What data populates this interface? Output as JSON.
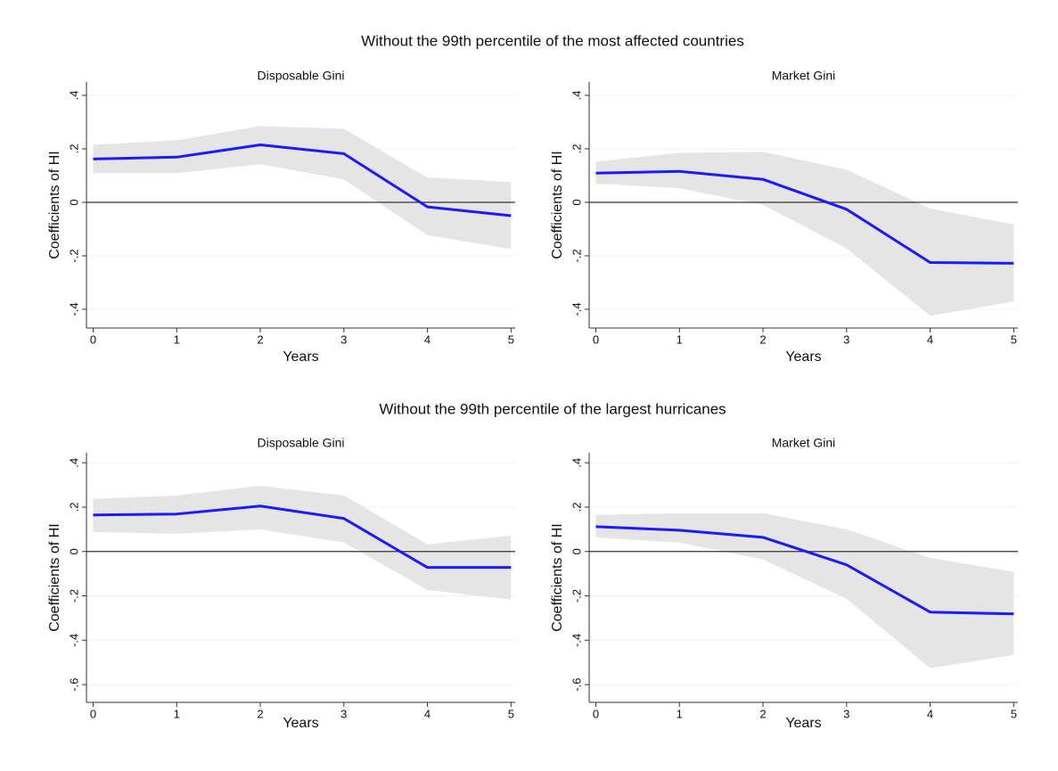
{
  "section_titles": [
    "Without the 99th percentile of the most affected countries",
    "Without the 99th percentile of the largest hurricanes"
  ],
  "chart_data": [
    {
      "type": "line",
      "title": "Disposable Gini",
      "xlabel": "Years",
      "ylabel": "Coefficients of HI",
      "x": [
        0,
        1,
        2,
        3,
        4,
        5
      ],
      "values": [
        0.162,
        0.169,
        0.215,
        0.182,
        -0.017,
        -0.05
      ],
      "upper": [
        0.215,
        0.232,
        0.285,
        0.275,
        0.093,
        0.076
      ],
      "lower": [
        0.109,
        0.109,
        0.142,
        0.086,
        -0.123,
        -0.175
      ],
      "color": "#1a1aff",
      "band_color": "#e5e5e5",
      "xlim": [
        -0.08,
        5.05
      ],
      "ylim": [
        -0.47,
        0.45
      ],
      "xticks": [
        0,
        1,
        2,
        3,
        4,
        5
      ],
      "yticks": [
        {
          "value": 0.4,
          "label": ".4"
        },
        {
          "value": 0.2,
          "label": ".2"
        },
        0,
        {
          "value": -0.2,
          "label": "-.2"
        },
        {
          "value": -0.4,
          "label": "-.4"
        }
      ],
      "grid": true,
      "reference_line": 0
    },
    {
      "type": "line",
      "title": "Market Gini",
      "xlabel": "Years",
      "ylabel": "Coefficients of HI",
      "x": [
        0,
        1,
        2,
        3,
        4,
        5
      ],
      "values": [
        0.109,
        0.116,
        0.086,
        -0.026,
        -0.225,
        -0.228
      ],
      "upper": [
        0.152,
        0.185,
        0.189,
        0.122,
        -0.023,
        -0.083
      ],
      "lower": [
        0.07,
        0.053,
        -0.01,
        -0.172,
        -0.424,
        -0.371
      ],
      "color": "#1a1aff",
      "band_color": "#e5e5e5",
      "xlim": [
        -0.08,
        5.05
      ],
      "ylim": [
        -0.47,
        0.45
      ],
      "xticks": [
        0,
        1,
        2,
        3,
        4,
        5
      ],
      "yticks": [
        {
          "value": 0.4,
          "label": ".4"
        },
        {
          "value": 0.2,
          "label": ".2"
        },
        0,
        {
          "value": -0.2,
          "label": "-.2"
        },
        {
          "value": -0.4,
          "label": "-.4"
        }
      ],
      "grid": true,
      "reference_line": 0
    },
    {
      "type": "line",
      "title": "Disposable Gini",
      "xlabel": "Years",
      "ylabel": "Coefficients of HI",
      "x": [
        0,
        1,
        2,
        3,
        4,
        5
      ],
      "values": [
        0.165,
        0.169,
        0.205,
        0.149,
        -0.072,
        -0.072
      ],
      "upper": [
        0.237,
        0.253,
        0.296,
        0.253,
        0.032,
        0.072
      ],
      "lower": [
        0.088,
        0.08,
        0.1,
        0.04,
        -0.173,
        -0.217
      ],
      "color": "#1a1aff",
      "band_color": "#e5e5e5",
      "xlim": [
        -0.08,
        5.05
      ],
      "ylim": [
        -0.68,
        0.445
      ],
      "xticks": [
        0,
        1,
        2,
        3,
        4,
        5
      ],
      "yticks": [
        {
          "value": 0.4,
          "label": ".4"
        },
        {
          "value": 0.2,
          "label": ".2"
        },
        0,
        {
          "value": -0.2,
          "label": "-.2"
        },
        {
          "value": -0.4,
          "label": "-.4"
        },
        {
          "value": -0.6,
          "label": "-.6"
        }
      ],
      "grid": true,
      "reference_line": 0
    },
    {
      "type": "line",
      "title": "Market Gini",
      "xlabel": "Years",
      "ylabel": "Coefficients of HI",
      "x": [
        0,
        1,
        2,
        3,
        4,
        5
      ],
      "values": [
        0.112,
        0.096,
        0.064,
        -0.06,
        -0.273,
        -0.281
      ],
      "upper": [
        0.165,
        0.173,
        0.173,
        0.1,
        -0.028,
        -0.092
      ],
      "lower": [
        0.064,
        0.04,
        -0.036,
        -0.213,
        -0.526,
        -0.466
      ],
      "color": "#1a1aff",
      "band_color": "#e5e5e5",
      "xlim": [
        -0.08,
        5.05
      ],
      "ylim": [
        -0.68,
        0.445
      ],
      "xticks": [
        0,
        1,
        2,
        3,
        4,
        5
      ],
      "yticks": [
        {
          "value": 0.4,
          "label": ".4"
        },
        {
          "value": 0.2,
          "label": ".2"
        },
        0,
        {
          "value": -0.2,
          "label": "-.2"
        },
        {
          "value": -0.4,
          "label": "-.4"
        },
        {
          "value": -0.6,
          "label": "-.6"
        }
      ],
      "grid": true,
      "reference_line": 0
    }
  ]
}
